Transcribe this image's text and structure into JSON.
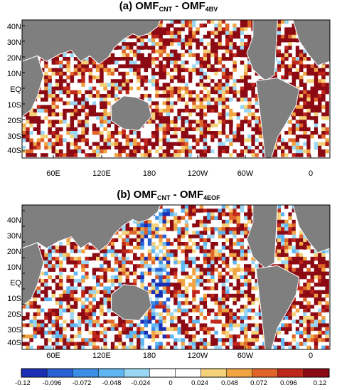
{
  "panels": [
    {
      "title_prefix": "(a) OMF",
      "title_sub1": "CNT",
      "title_mid": " - OMF",
      "title_sub2": "4BV"
    },
    {
      "title_prefix": "(b) OMF",
      "title_sub1": "CNT",
      "title_mid": " - OMF",
      "title_sub2": "4EOF"
    }
  ],
  "lat_labels": [
    "40N",
    "30N",
    "20N",
    "10N",
    "EQ",
    "10S",
    "20S",
    "30S",
    "40S"
  ],
  "lon_labels": [
    "60E",
    "120E",
    "180",
    "120W",
    "60W",
    "0"
  ],
  "colorbar": {
    "labels": [
      "-0.12",
      "-0.096",
      "-0.072",
      "-0.048",
      "-0.024",
      "0",
      "0.024",
      "0.048",
      "0.072",
      "0.096",
      "0.12"
    ],
    "colors": [
      "#1b2fb5",
      "#2a62d6",
      "#3b8fe6",
      "#5fb6f2",
      "#9ad7f4",
      "#ffffff",
      "#ffffff",
      "#f5d27a",
      "#f0a442",
      "#e0652a",
      "#c0271c",
      "#8c0a14"
    ]
  },
  "colors": {
    "land": "#7f7f7f",
    "ocean_missing": "#ffffff"
  }
}
